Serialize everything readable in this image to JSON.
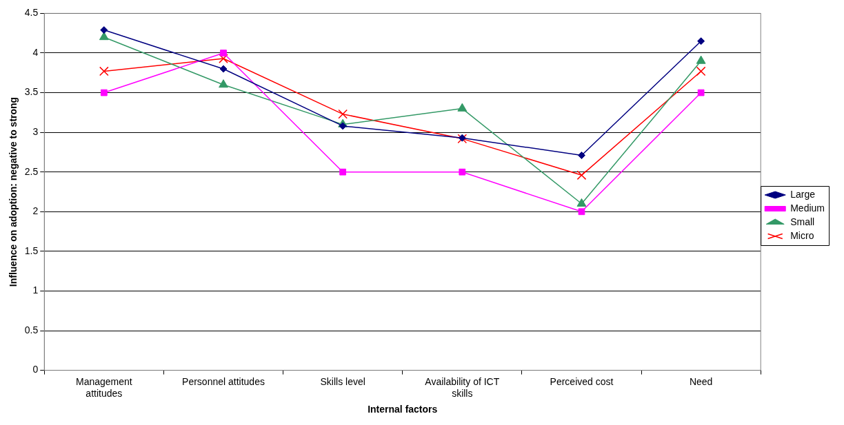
{
  "chart_data": {
    "type": "line",
    "xlabel": "Internal factors",
    "ylabel": "Influence on adoption: negative to strong",
    "categories": [
      "Management attitudes",
      "Personnel attitudes",
      "Skills level",
      "Availability of ICT skills",
      "Perceived cost",
      "Need"
    ],
    "series": [
      {
        "name": "Large",
        "color": "#000080",
        "marker": "diamond",
        "values": [
          4.29,
          3.8,
          3.08,
          2.93,
          2.71,
          4.15
        ]
      },
      {
        "name": "Medium",
        "color": "#ff00ff",
        "marker": "square",
        "values": [
          3.5,
          4,
          2.5,
          2.5,
          2,
          3.5
        ]
      },
      {
        "name": "Small",
        "color": "#339966",
        "marker": "triangle",
        "values": [
          4.2,
          3.6,
          3.1,
          3.3,
          2.1,
          3.9
        ]
      },
      {
        "name": "Micro",
        "color": "#ff0000",
        "marker": "cross",
        "values": [
          3.77,
          3.93,
          3.23,
          2.92,
          2.46,
          3.77
        ]
      }
    ],
    "ylim": [
      0,
      4.5
    ],
    "yticks": [
      0,
      0.5,
      1,
      1.5,
      2,
      2.5,
      3,
      3.5,
      4,
      4.5
    ],
    "grid": "y",
    "legend": "right"
  }
}
